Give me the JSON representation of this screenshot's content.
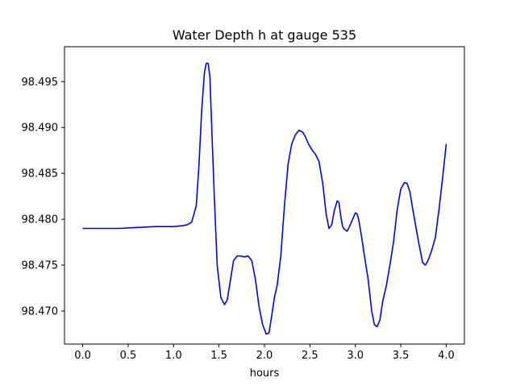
{
  "chart_data": {
    "type": "line",
    "title": "Water Depth h at gauge 535",
    "xlabel": "hours",
    "ylabel": "",
    "xlim": [
      -0.2,
      4.2
    ],
    "ylim": [
      98.4664,
      98.4988
    ],
    "xticks": [
      0.0,
      0.5,
      1.0,
      1.5,
      2.0,
      2.5,
      3.0,
      3.5,
      4.0
    ],
    "xtick_labels": [
      "0.0",
      "0.5",
      "1.0",
      "1.5",
      "2.0",
      "2.5",
      "3.0",
      "3.5",
      "4.0"
    ],
    "yticks": [
      98.47,
      98.475,
      98.48,
      98.485,
      98.49,
      98.495
    ],
    "ytick_labels": [
      "98.470",
      "98.475",
      "98.480",
      "98.485",
      "98.490",
      "98.495"
    ],
    "grid": false,
    "series": [
      {
        "color": "#0000ff",
        "x": [
          0.0,
          0.2,
          0.4,
          0.6,
          0.8,
          1.0,
          1.1,
          1.15,
          1.2,
          1.25,
          1.28,
          1.31,
          1.34,
          1.36,
          1.38,
          1.4,
          1.42,
          1.45,
          1.48,
          1.52,
          1.56,
          1.59,
          1.62,
          1.66,
          1.7,
          1.74,
          1.78,
          1.82,
          1.86,
          1.9,
          1.94,
          1.98,
          2.02,
          2.05,
          2.08,
          2.11,
          2.14,
          2.18,
          2.22,
          2.26,
          2.3,
          2.34,
          2.38,
          2.42,
          2.45,
          2.48,
          2.52,
          2.56,
          2.6,
          2.64,
          2.68,
          2.71,
          2.74,
          2.77,
          2.8,
          2.82,
          2.84,
          2.86,
          2.88,
          2.91,
          2.94,
          2.97,
          3.0,
          3.02,
          3.04,
          3.07,
          3.1,
          3.14,
          3.18,
          3.21,
          3.24,
          3.27,
          3.3,
          3.34,
          3.38,
          3.42,
          3.46,
          3.5,
          3.54,
          3.57,
          3.6,
          3.63,
          3.66,
          3.7,
          3.74,
          3.77,
          3.8,
          3.84,
          3.88,
          3.92,
          3.96,
          4.0
        ],
        "y": [
          98.479,
          98.479,
          98.479,
          98.4791,
          98.4792,
          98.4792,
          98.4793,
          98.4794,
          98.4797,
          98.4815,
          98.486,
          98.492,
          98.496,
          98.497,
          98.497,
          98.4955,
          98.49,
          98.482,
          98.475,
          98.4715,
          98.4707,
          98.4712,
          98.473,
          98.4755,
          98.476,
          98.476,
          98.4759,
          98.476,
          98.4755,
          98.4735,
          98.4705,
          98.4685,
          98.4675,
          98.4676,
          98.4695,
          98.4715,
          98.4728,
          98.476,
          98.4815,
          98.486,
          98.4882,
          98.4892,
          98.4897,
          98.4895,
          98.489,
          98.4883,
          98.4876,
          98.4871,
          98.4863,
          98.484,
          98.4805,
          98.479,
          98.4794,
          98.481,
          98.482,
          98.4818,
          98.4803,
          98.4792,
          98.4789,
          98.4787,
          98.4793,
          98.48,
          98.4807,
          98.4806,
          98.4798,
          98.478,
          98.476,
          98.4735,
          98.47,
          98.4685,
          98.4683,
          98.469,
          98.471,
          98.4727,
          98.475,
          98.4775,
          98.481,
          98.4833,
          98.484,
          98.4839,
          98.483,
          98.4812,
          98.4795,
          98.4773,
          98.4753,
          98.475,
          98.4755,
          98.4766,
          98.478,
          98.481,
          98.4845,
          98.4882
        ]
      }
    ]
  }
}
